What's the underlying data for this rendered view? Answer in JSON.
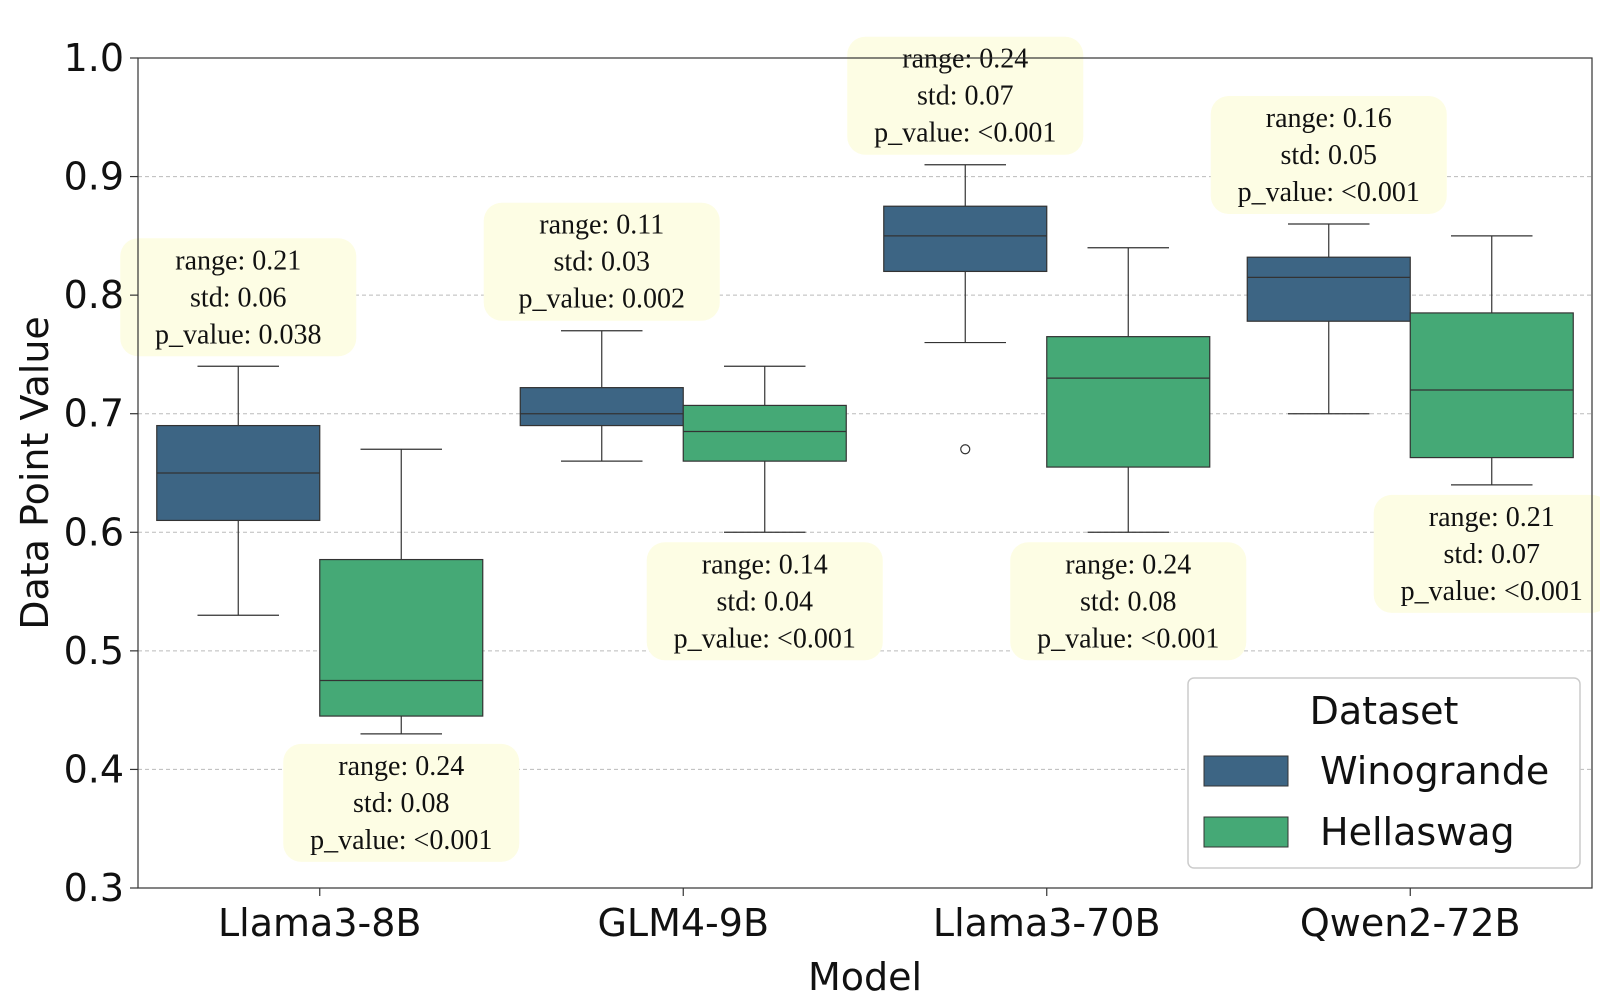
{
  "chart_data": {
    "type": "box",
    "xlabel": "Model",
    "ylabel": "Data Point Value",
    "ylim": [
      0.3,
      1.0
    ],
    "yticks": [
      "0.3",
      "0.4",
      "0.5",
      "0.6",
      "0.7",
      "0.8",
      "0.9",
      "1.0"
    ],
    "grid": "horizontal dashed",
    "categories": [
      "Llama3-8B",
      "GLM4-9B",
      "Llama3-70B",
      "Qwen2-72B"
    ],
    "series": [
      {
        "name": "Winogrande",
        "color": "#3d6584",
        "boxes": [
          {
            "whislo": 0.53,
            "q1": 0.61,
            "med": 0.65,
            "q3": 0.69,
            "whishi": 0.74,
            "fliers": []
          },
          {
            "whislo": 0.66,
            "q1": 0.69,
            "med": 0.7,
            "q3": 0.722,
            "whishi": 0.77,
            "fliers": []
          },
          {
            "whislo": 0.76,
            "q1": 0.82,
            "med": 0.85,
            "q3": 0.875,
            "whishi": 0.91,
            "fliers": [
              0.67
            ]
          },
          {
            "whislo": 0.7,
            "q1": 0.778,
            "med": 0.815,
            "q3": 0.832,
            "whishi": 0.86,
            "fliers": []
          }
        ]
      },
      {
        "name": "Hellaswag",
        "color": "#45a976",
        "boxes": [
          {
            "whislo": 0.43,
            "q1": 0.445,
            "med": 0.475,
            "q3": 0.577,
            "whishi": 0.67,
            "fliers": []
          },
          {
            "whislo": 0.6,
            "q1": 0.66,
            "med": 0.685,
            "q3": 0.707,
            "whishi": 0.74,
            "fliers": []
          },
          {
            "whislo": 0.6,
            "q1": 0.655,
            "med": 0.73,
            "q3": 0.765,
            "whishi": 0.84,
            "fliers": []
          },
          {
            "whislo": 0.64,
            "q1": 0.663,
            "med": 0.72,
            "q3": 0.785,
            "whishi": 0.85,
            "fliers": []
          }
        ]
      }
    ],
    "annotations": [
      {
        "category": 0,
        "series": 0,
        "position": "above",
        "lines": [
          "range: 0.21",
          "std: 0.06",
          "p_value: 0.038"
        ]
      },
      {
        "category": 0,
        "series": 1,
        "position": "below",
        "lines": [
          "range: 0.24",
          "std: 0.08",
          "p_value: <0.001"
        ]
      },
      {
        "category": 1,
        "series": 0,
        "position": "above",
        "lines": [
          "range: 0.11",
          "std: 0.03",
          "p_value: 0.002"
        ]
      },
      {
        "category": 1,
        "series": 1,
        "position": "below",
        "lines": [
          "range: 0.14",
          "std: 0.04",
          "p_value: <0.001"
        ]
      },
      {
        "category": 2,
        "series": 0,
        "position": "above",
        "lines": [
          "range: 0.24",
          "std: 0.07",
          "p_value: <0.001"
        ]
      },
      {
        "category": 2,
        "series": 1,
        "position": "below",
        "lines": [
          "range: 0.24",
          "std: 0.08",
          "p_value: <0.001"
        ]
      },
      {
        "category": 3,
        "series": 0,
        "position": "above",
        "lines": [
          "range: 0.16",
          "std: 0.05",
          "p_value: <0.001"
        ]
      },
      {
        "category": 3,
        "series": 1,
        "position": "below",
        "lines": [
          "range: 0.21",
          "std: 0.07",
          "p_value: <0.001"
        ]
      }
    ],
    "legend": {
      "title": "Dataset",
      "placement": "bottom-right",
      "entries": [
        "Winogrande",
        "Hellaswag"
      ]
    },
    "annotation_bg": "#fdfde4"
  }
}
